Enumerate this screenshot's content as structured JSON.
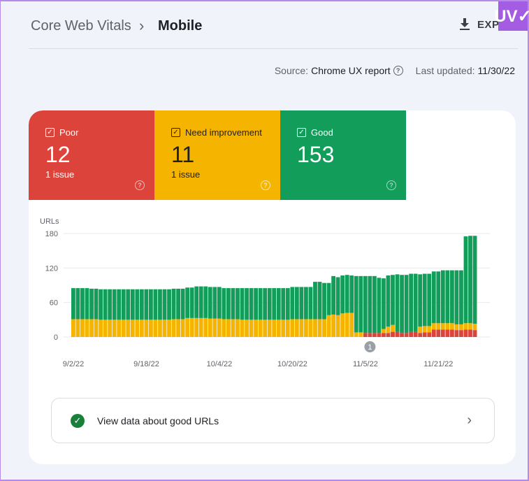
{
  "header": {
    "breadcrumb_parent": "Core Web Vitals",
    "breadcrumb_sep": "›",
    "breadcrumb_current": "Mobile",
    "export_label": "EXP",
    "logo_text": "UV✓"
  },
  "source": {
    "label": "Source:",
    "value": "Chrome UX report",
    "help": "?",
    "updated_label": "Last updated:",
    "updated_value": "11/30/22"
  },
  "tiles": [
    {
      "label": "Poor",
      "count": "12",
      "issues": "1 issue",
      "color": "#dc443b"
    },
    {
      "label": "Need improvement",
      "count": "11",
      "issues": "1 issue",
      "color": "#f4b400"
    },
    {
      "label": "Good",
      "count": "153",
      "issues": "",
      "color": "#129e5a"
    }
  ],
  "good_row": {
    "label": "View data about good URLs"
  },
  "chart_data": {
    "type": "bar",
    "stacked": true,
    "ylabel": "URLs",
    "ylim": [
      0,
      180
    ],
    "yticks": [
      0,
      60,
      120,
      180
    ],
    "xtick_labels": [
      "9/2/22",
      "9/18/22",
      "10/4/22",
      "10/20/22",
      "11/5/22",
      "11/21/22"
    ],
    "xtick_categories": [
      "9/2",
      "9/18",
      "10/4",
      "10/20",
      "11/5",
      "11/21"
    ],
    "annotations": [
      {
        "category": "11/6",
        "label": "1"
      }
    ],
    "categories": [
      "9/2",
      "9/3",
      "9/4",
      "9/5",
      "9/6",
      "9/7",
      "9/8",
      "9/9",
      "9/10",
      "9/11",
      "9/12",
      "9/13",
      "9/14",
      "9/15",
      "9/16",
      "9/17",
      "9/18",
      "9/19",
      "9/20",
      "9/21",
      "9/22",
      "9/23",
      "9/24",
      "9/25",
      "9/26",
      "9/27",
      "9/28",
      "9/29",
      "9/30",
      "10/1",
      "10/2",
      "10/3",
      "10/4",
      "10/5",
      "10/6",
      "10/7",
      "10/8",
      "10/9",
      "10/10",
      "10/11",
      "10/12",
      "10/13",
      "10/14",
      "10/15",
      "10/16",
      "10/17",
      "10/18",
      "10/19",
      "10/20",
      "10/21",
      "10/22",
      "10/23",
      "10/24",
      "10/25",
      "10/26",
      "10/27",
      "10/28",
      "10/29",
      "10/30",
      "10/31",
      "11/1",
      "11/2",
      "11/3",
      "11/4",
      "11/5",
      "11/6",
      "11/7",
      "11/8",
      "11/9",
      "11/10",
      "11/11",
      "11/12",
      "11/13",
      "11/14",
      "11/15",
      "11/16",
      "11/17",
      "11/18",
      "11/19",
      "11/20",
      "11/21",
      "11/22",
      "11/23",
      "11/24",
      "11/25",
      "11/26",
      "11/27",
      "11/28",
      "11/29"
    ],
    "series": [
      {
        "name": "Poor",
        "color": "#dc443b",
        "values": [
          0,
          0,
          0,
          0,
          0,
          0,
          0,
          0,
          0,
          0,
          0,
          0,
          0,
          0,
          0,
          0,
          0,
          0,
          0,
          0,
          0,
          0,
          0,
          0,
          0,
          0,
          0,
          0,
          0,
          0,
          0,
          0,
          0,
          0,
          0,
          0,
          0,
          0,
          0,
          0,
          0,
          0,
          0,
          0,
          0,
          0,
          0,
          0,
          0,
          0,
          0,
          0,
          0,
          0,
          0,
          0,
          0,
          0,
          0,
          0,
          0,
          0,
          0,
          0,
          7,
          7,
          7,
          7,
          7,
          7,
          9,
          9,
          7,
          7,
          9,
          9,
          7,
          8,
          8,
          13,
          13,
          13,
          13,
          13,
          12,
          12,
          13,
          13,
          12
        ]
      },
      {
        "name": "Need improvement",
        "color": "#f4b400",
        "values": [
          31,
          31,
          31,
          31,
          31,
          31,
          30,
          30,
          30,
          30,
          30,
          30,
          30,
          30,
          30,
          30,
          30,
          30,
          30,
          30,
          30,
          30,
          31,
          31,
          31,
          33,
          33,
          33,
          33,
          33,
          32,
          32,
          32,
          31,
          31,
          31,
          31,
          30,
          30,
          30,
          30,
          30,
          30,
          30,
          30,
          30,
          30,
          30,
          31,
          31,
          31,
          31,
          31,
          31,
          31,
          31,
          38,
          39,
          38,
          41,
          42,
          42,
          8,
          8,
          0,
          0,
          0,
          0,
          7,
          11,
          12,
          0,
          0,
          0,
          0,
          0,
          11,
          11,
          11,
          11,
          11,
          11,
          11,
          11,
          10,
          10,
          11,
          11,
          11
        ]
      },
      {
        "name": "Good",
        "color": "#129e5a",
        "values": [
          54,
          54,
          54,
          54,
          53,
          53,
          53,
          53,
          53,
          53,
          53,
          53,
          53,
          53,
          53,
          53,
          53,
          53,
          53,
          53,
          53,
          53,
          53,
          53,
          53,
          53,
          53,
          55,
          55,
          55,
          55,
          55,
          55,
          54,
          54,
          54,
          54,
          55,
          55,
          55,
          55,
          55,
          55,
          55,
          55,
          55,
          55,
          55,
          56,
          56,
          56,
          56,
          56,
          65,
          65,
          63,
          56,
          67,
          66,
          66,
          66,
          65,
          98,
          98,
          99,
          99,
          99,
          96,
          88,
          89,
          87,
          100,
          101,
          101,
          101,
          101,
          91,
          91,
          91,
          90,
          90,
          92,
          92,
          92,
          94,
          94,
          151,
          152,
          153
        ]
      }
    ]
  }
}
